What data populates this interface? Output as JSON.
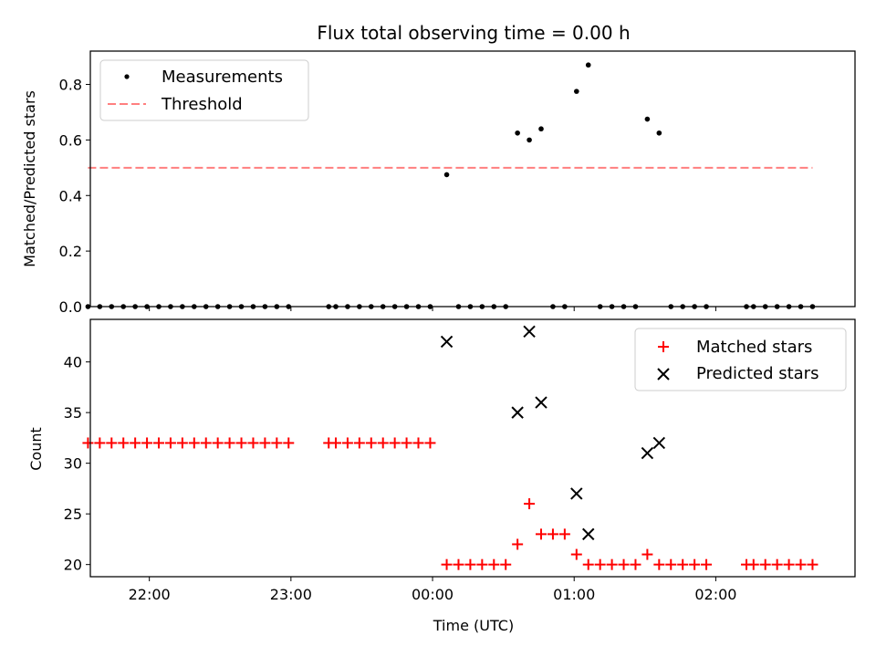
{
  "chart_data": [
    {
      "type": "scatter",
      "title": "Flux total observing time = 0.00 h",
      "xlabel": "",
      "ylabel": "Matched/Predicted stars",
      "xlim": [
        "21:35",
        "02:59"
      ],
      "ylim": [
        0,
        0.92
      ],
      "yticks": [
        0.0,
        0.2,
        0.4,
        0.6,
        0.8
      ],
      "ytick_labels": [
        "0.0",
        "0.2",
        "0.4",
        "0.6",
        "0.8"
      ],
      "grid": false,
      "legend_position": "upper-left",
      "series": [
        {
          "name": "Measurements",
          "marker": "dot",
          "color": "#000000",
          "points": [
            [
              "21:34",
              0
            ],
            [
              "21:39",
              0
            ],
            [
              "21:44",
              0
            ],
            [
              "21:49",
              0
            ],
            [
              "21:54",
              0
            ],
            [
              "21:59",
              0
            ],
            [
              "22:04",
              0
            ],
            [
              "22:09",
              0
            ],
            [
              "22:14",
              0
            ],
            [
              "22:19",
              0
            ],
            [
              "22:24",
              0
            ],
            [
              "22:29",
              0
            ],
            [
              "22:34",
              0
            ],
            [
              "22:39",
              0
            ],
            [
              "22:44",
              0
            ],
            [
              "22:49",
              0
            ],
            [
              "22:54",
              0
            ],
            [
              "22:59",
              0
            ],
            [
              "23:16",
              0
            ],
            [
              "23:19",
              0
            ],
            [
              "23:24",
              0
            ],
            [
              "23:29",
              0
            ],
            [
              "23:34",
              0
            ],
            [
              "23:39",
              0
            ],
            [
              "23:44",
              0
            ],
            [
              "23:49",
              0
            ],
            [
              "23:54",
              0
            ],
            [
              "23:59",
              0
            ],
            [
              "00:06",
              0.475
            ],
            [
              "00:11",
              0
            ],
            [
              "00:16",
              0
            ],
            [
              "00:21",
              0
            ],
            [
              "00:26",
              0
            ],
            [
              "00:31",
              0
            ],
            [
              "00:36",
              0.625
            ],
            [
              "00:41",
              0.6
            ],
            [
              "00:46",
              0.64
            ],
            [
              "00:51",
              0
            ],
            [
              "00:56",
              0
            ],
            [
              "01:01",
              0.775
            ],
            [
              "01:06",
              0.87
            ],
            [
              "01:11",
              0
            ],
            [
              "01:16",
              0
            ],
            [
              "01:21",
              0
            ],
            [
              "01:26",
              0
            ],
            [
              "01:31",
              0.675
            ],
            [
              "01:36",
              0.625
            ],
            [
              "01:41",
              0
            ],
            [
              "01:46",
              0
            ],
            [
              "01:51",
              0
            ],
            [
              "01:56",
              0
            ],
            [
              "02:13",
              0
            ],
            [
              "02:16",
              0
            ],
            [
              "02:21",
              0
            ],
            [
              "02:26",
              0
            ],
            [
              "02:31",
              0
            ],
            [
              "02:36",
              0
            ],
            [
              "02:41",
              0
            ]
          ]
        },
        {
          "name": "Threshold",
          "style": "dashed-line",
          "color": "#ff7f7f",
          "x": [
            "21:34",
            "02:41"
          ],
          "y": [
            0.5,
            0.5
          ]
        }
      ]
    },
    {
      "type": "scatter",
      "title": "",
      "xlabel": "Time (UTC)",
      "ylabel": "Count",
      "xlim": [
        "21:35",
        "02:59"
      ],
      "xticks": [
        "22:00",
        "23:00",
        "00:00",
        "01:00",
        "02:00"
      ],
      "ylim": [
        18.8,
        44.2
      ],
      "yticks": [
        20,
        25,
        30,
        35,
        40
      ],
      "ytick_labels": [
        "20",
        "25",
        "30",
        "35",
        "40"
      ],
      "grid": false,
      "legend_position": "upper-right",
      "series": [
        {
          "name": "Matched stars",
          "marker": "plus",
          "color": "#ff0000",
          "points": [
            [
              "21:34",
              32
            ],
            [
              "21:39",
              32
            ],
            [
              "21:44",
              32
            ],
            [
              "21:49",
              32
            ],
            [
              "21:54",
              32
            ],
            [
              "21:59",
              32
            ],
            [
              "22:04",
              32
            ],
            [
              "22:09",
              32
            ],
            [
              "22:14",
              32
            ],
            [
              "22:19",
              32
            ],
            [
              "22:24",
              32
            ],
            [
              "22:29",
              32
            ],
            [
              "22:34",
              32
            ],
            [
              "22:39",
              32
            ],
            [
              "22:44",
              32
            ],
            [
              "22:49",
              32
            ],
            [
              "22:54",
              32
            ],
            [
              "22:59",
              32
            ],
            [
              "23:16",
              32
            ],
            [
              "23:19",
              32
            ],
            [
              "23:24",
              32
            ],
            [
              "23:29",
              32
            ],
            [
              "23:34",
              32
            ],
            [
              "23:39",
              32
            ],
            [
              "23:44",
              32
            ],
            [
              "23:49",
              32
            ],
            [
              "23:54",
              32
            ],
            [
              "23:59",
              32
            ],
            [
              "00:06",
              20
            ],
            [
              "00:11",
              20
            ],
            [
              "00:16",
              20
            ],
            [
              "00:21",
              20
            ],
            [
              "00:26",
              20
            ],
            [
              "00:31",
              20
            ],
            [
              "00:36",
              22
            ],
            [
              "00:41",
              26
            ],
            [
              "00:46",
              23
            ],
            [
              "00:51",
              23
            ],
            [
              "00:56",
              23
            ],
            [
              "01:01",
              21
            ],
            [
              "01:06",
              20
            ],
            [
              "01:11",
              20
            ],
            [
              "01:16",
              20
            ],
            [
              "01:21",
              20
            ],
            [
              "01:26",
              20
            ],
            [
              "01:31",
              21
            ],
            [
              "01:36",
              20
            ],
            [
              "01:41",
              20
            ],
            [
              "01:46",
              20
            ],
            [
              "01:51",
              20
            ],
            [
              "01:56",
              20
            ],
            [
              "02:13",
              20
            ],
            [
              "02:16",
              20
            ],
            [
              "02:21",
              20
            ],
            [
              "02:26",
              20
            ],
            [
              "02:31",
              20
            ],
            [
              "02:36",
              20
            ],
            [
              "02:41",
              20
            ]
          ]
        },
        {
          "name": "Predicted stars",
          "marker": "x",
          "color": "#000000",
          "points": [
            [
              "00:06",
              42
            ],
            [
              "00:36",
              35
            ],
            [
              "00:41",
              43
            ],
            [
              "00:46",
              36
            ],
            [
              "01:01",
              27
            ],
            [
              "01:06",
              23
            ],
            [
              "01:31",
              31
            ],
            [
              "01:36",
              32
            ]
          ]
        }
      ]
    }
  ]
}
